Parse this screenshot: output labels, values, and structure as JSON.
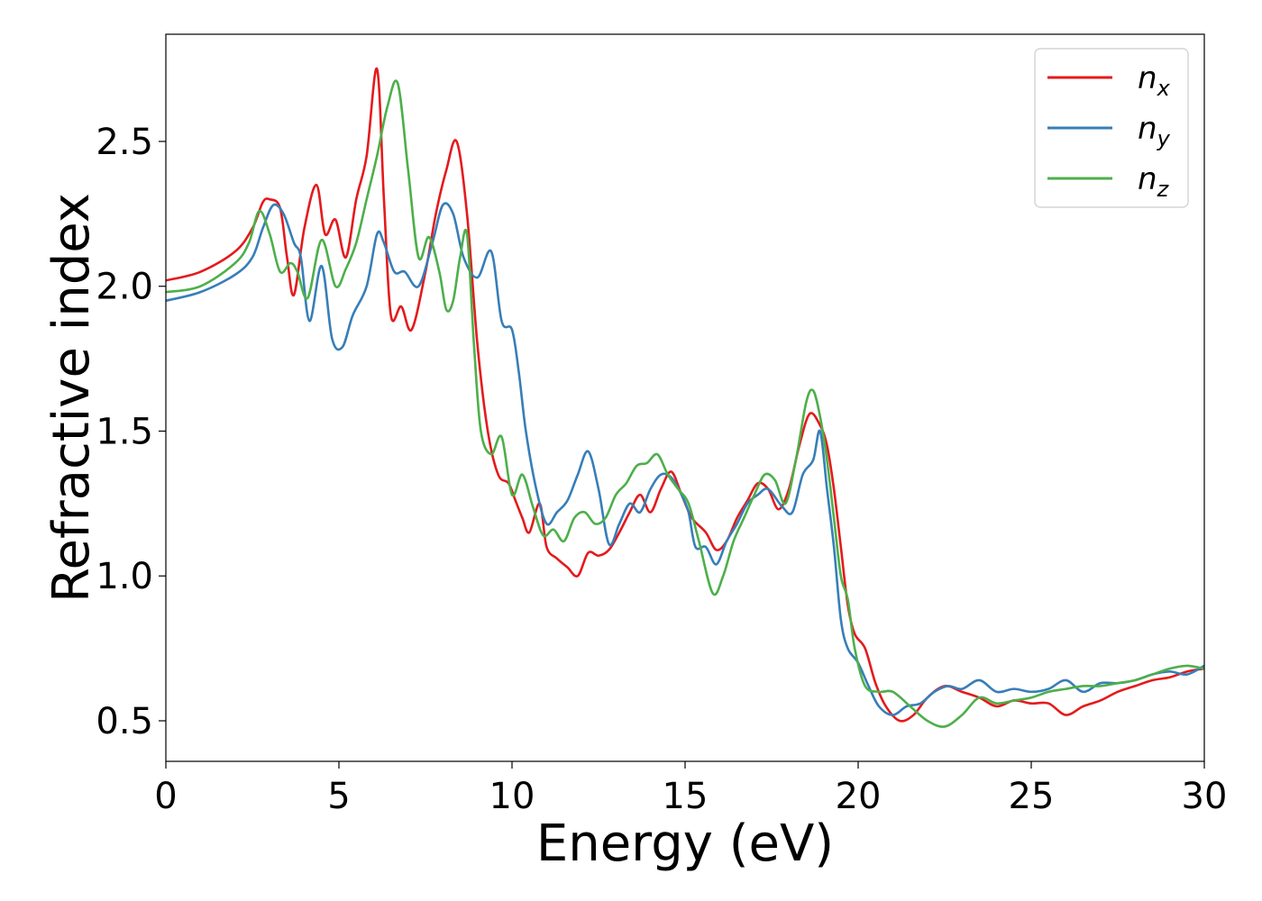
{
  "chart_data": {
    "type": "line",
    "title": "",
    "xlabel": "Energy (eV)",
    "ylabel": "Refractive index",
    "xlim": [
      0,
      30
    ],
    "ylim": [
      0.36,
      2.87
    ],
    "xticks": [
      0,
      5,
      10,
      15,
      20,
      25,
      30
    ],
    "xtick_labels": [
      "0",
      "5",
      "10",
      "15",
      "20",
      "25",
      "30"
    ],
    "yticks": [
      0.5,
      1.0,
      1.5,
      2.0,
      2.5
    ],
    "ytick_labels": [
      "0.5",
      "1.0",
      "1.5",
      "2.0",
      "2.5"
    ],
    "grid": false,
    "legend_position": "top-right",
    "series": [
      {
        "name": "n_x",
        "label_base": "n",
        "label_sub": "x",
        "color": "#e41a1c",
        "x": [
          0,
          1,
          2,
          2.5,
          2.8,
          3.0,
          3.3,
          3.5,
          3.7,
          4.0,
          4.35,
          4.6,
          4.9,
          5.2,
          5.5,
          5.8,
          6.1,
          6.3,
          6.5,
          6.8,
          7.1,
          7.5,
          7.8,
          8.1,
          8.4,
          8.7,
          9.0,
          9.3,
          9.6,
          9.9,
          10.1,
          10.3,
          10.5,
          10.8,
          11.0,
          11.3,
          11.6,
          11.9,
          12.2,
          12.5,
          12.8,
          13.1,
          13.4,
          13.7,
          14.0,
          14.3,
          14.6,
          14.9,
          15.2,
          15.6,
          15.9,
          16.2,
          16.5,
          16.8,
          17.1,
          17.4,
          17.7,
          18.0,
          18.3,
          18.6,
          18.9,
          19.1,
          19.3,
          19.5,
          19.7,
          19.9,
          20.2,
          20.5,
          20.8,
          21.2,
          21.6,
          22.0,
          22.5,
          23.0,
          23.5,
          24.0,
          24.5,
          25.0,
          25.5,
          26.0,
          26.5,
          27.0,
          27.5,
          28.0,
          28.5,
          29.0,
          29.5,
          30.0
        ],
        "y": [
          2.02,
          2.05,
          2.12,
          2.2,
          2.29,
          2.3,
          2.27,
          2.1,
          1.97,
          2.2,
          2.35,
          2.18,
          2.23,
          2.1,
          2.3,
          2.45,
          2.75,
          2.3,
          1.9,
          1.93,
          1.85,
          2.05,
          2.25,
          2.4,
          2.5,
          2.25,
          1.8,
          1.5,
          1.35,
          1.32,
          1.26,
          1.2,
          1.15,
          1.25,
          1.1,
          1.06,
          1.03,
          1.0,
          1.08,
          1.07,
          1.09,
          1.15,
          1.22,
          1.28,
          1.22,
          1.3,
          1.36,
          1.28,
          1.2,
          1.15,
          1.09,
          1.12,
          1.2,
          1.26,
          1.32,
          1.3,
          1.23,
          1.3,
          1.45,
          1.56,
          1.52,
          1.45,
          1.3,
          1.1,
          0.9,
          0.8,
          0.75,
          0.63,
          0.55,
          0.5,
          0.52,
          0.58,
          0.62,
          0.6,
          0.58,
          0.55,
          0.57,
          0.56,
          0.56,
          0.52,
          0.55,
          0.57,
          0.6,
          0.62,
          0.64,
          0.65,
          0.67,
          0.68
        ]
      },
      {
        "name": "n_y",
        "label_base": "n",
        "label_sub": "y",
        "color": "#377eb8",
        "x": [
          0,
          1,
          2,
          2.5,
          2.8,
          3.1,
          3.4,
          3.7,
          3.9,
          4.15,
          4.5,
          4.8,
          5.1,
          5.4,
          5.8,
          6.1,
          6.3,
          6.6,
          6.9,
          7.3,
          7.7,
          8.0,
          8.3,
          8.6,
          9.0,
          9.4,
          9.7,
          10.0,
          10.2,
          10.4,
          10.7,
          11.0,
          11.3,
          11.6,
          11.9,
          12.2,
          12.5,
          12.8,
          13.1,
          13.4,
          13.7,
          14.0,
          14.3,
          14.6,
          14.9,
          15.1,
          15.3,
          15.6,
          15.9,
          16.2,
          16.5,
          16.8,
          17.1,
          17.4,
          17.8,
          18.1,
          18.4,
          18.7,
          18.9,
          19.1,
          19.3,
          19.5,
          19.7,
          20.0,
          20.3,
          20.6,
          21.0,
          21.4,
          21.8,
          22.2,
          22.6,
          23.0,
          23.5,
          24.0,
          24.5,
          25.0,
          25.5,
          26.0,
          26.5,
          27.0,
          27.5,
          28.0,
          28.5,
          29.0,
          29.5,
          30.0
        ],
        "y": [
          1.95,
          1.98,
          2.04,
          2.1,
          2.2,
          2.28,
          2.25,
          2.15,
          2.1,
          1.88,
          2.07,
          1.82,
          1.79,
          1.9,
          2.0,
          2.18,
          2.15,
          2.05,
          2.05,
          2.0,
          2.15,
          2.28,
          2.25,
          2.1,
          2.03,
          2.12,
          1.88,
          1.85,
          1.7,
          1.5,
          1.3,
          1.18,
          1.22,
          1.26,
          1.35,
          1.43,
          1.3,
          1.11,
          1.18,
          1.25,
          1.22,
          1.3,
          1.35,
          1.34,
          1.28,
          1.22,
          1.1,
          1.1,
          1.04,
          1.12,
          1.18,
          1.25,
          1.28,
          1.3,
          1.24,
          1.22,
          1.35,
          1.4,
          1.5,
          1.3,
          1.1,
          0.85,
          0.75,
          0.7,
          0.62,
          0.55,
          0.52,
          0.55,
          0.56,
          0.6,
          0.62,
          0.61,
          0.64,
          0.6,
          0.61,
          0.6,
          0.61,
          0.64,
          0.6,
          0.63,
          0.63,
          0.64,
          0.66,
          0.67,
          0.66,
          0.69
        ]
      },
      {
        "name": "n_z",
        "label_base": "n",
        "label_sub": "z",
        "color": "#4daf4a",
        "x": [
          0,
          1,
          2,
          2.4,
          2.7,
          3.0,
          3.3,
          3.6,
          3.8,
          4.1,
          4.5,
          4.9,
          5.2,
          5.5,
          5.8,
          6.1,
          6.4,
          6.7,
          7.0,
          7.3,
          7.6,
          7.9,
          8.1,
          8.3,
          8.5,
          8.7,
          8.9,
          9.1,
          9.4,
          9.7,
          10.0,
          10.3,
          10.6,
          10.9,
          11.2,
          11.5,
          11.8,
          12.1,
          12.4,
          12.7,
          13.0,
          13.3,
          13.6,
          13.9,
          14.2,
          14.5,
          14.8,
          15.1,
          15.4,
          15.8,
          16.1,
          16.4,
          16.7,
          17.0,
          17.3,
          17.6,
          17.9,
          18.2,
          18.5,
          18.7,
          18.9,
          19.1,
          19.3,
          19.5,
          19.7,
          19.9,
          20.2,
          20.6,
          21.0,
          21.5,
          22.0,
          22.5,
          23.0,
          23.5,
          24.0,
          24.5,
          25.0,
          25.5,
          26.0,
          26.5,
          27.0,
          27.5,
          28.0,
          28.5,
          29.0,
          29.5,
          30.0
        ],
        "y": [
          1.98,
          2.0,
          2.08,
          2.15,
          2.26,
          2.18,
          2.05,
          2.08,
          2.05,
          1.96,
          2.16,
          2.0,
          2.06,
          2.15,
          2.3,
          2.45,
          2.62,
          2.7,
          2.4,
          2.1,
          2.17,
          2.05,
          1.92,
          1.95,
          2.1,
          2.18,
          1.8,
          1.5,
          1.42,
          1.48,
          1.28,
          1.35,
          1.24,
          1.14,
          1.16,
          1.12,
          1.2,
          1.22,
          1.18,
          1.2,
          1.28,
          1.32,
          1.38,
          1.39,
          1.42,
          1.35,
          1.3,
          1.25,
          1.12,
          0.94,
          1.0,
          1.12,
          1.2,
          1.28,
          1.35,
          1.33,
          1.25,
          1.4,
          1.6,
          1.64,
          1.55,
          1.4,
          1.2,
          1.0,
          0.92,
          0.75,
          0.62,
          0.6,
          0.6,
          0.55,
          0.5,
          0.48,
          0.52,
          0.58,
          0.56,
          0.57,
          0.58,
          0.6,
          0.61,
          0.62,
          0.62,
          0.63,
          0.64,
          0.66,
          0.68,
          0.69,
          0.68
        ]
      }
    ]
  }
}
